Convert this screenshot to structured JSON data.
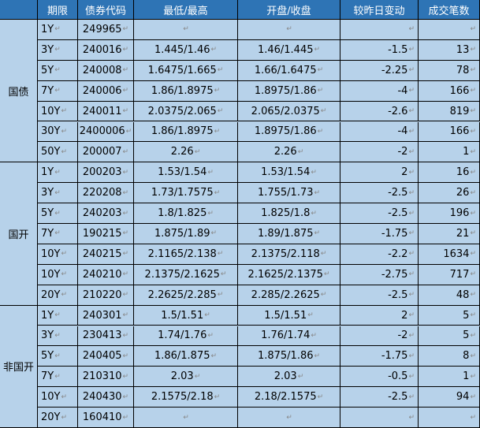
{
  "table": {
    "headers": [
      "期限",
      "债券代码",
      "最低/最高",
      "开盘/收盘",
      "较昨日变动",
      "成交笔数"
    ],
    "groups": [
      {
        "name": "国债",
        "rows": [
          {
            "term": "1Y",
            "code": "249965",
            "lowhigh": "",
            "openclose": "",
            "change": "",
            "count": ""
          },
          {
            "term": "3Y",
            "code": "240016",
            "lowhigh": "1.445/1.46",
            "openclose": "1.46/1.445",
            "change": "-1.5",
            "count": "13"
          },
          {
            "term": "5Y",
            "code": "240008",
            "lowhigh": "1.6475/1.665",
            "openclose": "1.66/1.6475",
            "change": "-2.25",
            "count": "78"
          },
          {
            "term": "7Y",
            "code": "240006",
            "lowhigh": "1.86/1.8975",
            "openclose": "1.8975/1.86",
            "change": "-4",
            "count": "166"
          },
          {
            "term": "10Y",
            "code": "240011",
            "lowhigh": "2.0375/2.065",
            "openclose": "2.065/2.0375",
            "change": "-2.6",
            "count": "819"
          },
          {
            "term": "30Y",
            "code": "2400006",
            "lowhigh": "1.86/1.8975",
            "openclose": "1.8975/1.86",
            "change": "-4",
            "count": "166"
          },
          {
            "term": "50Y",
            "code": "200007",
            "lowhigh": "2.26",
            "openclose": "2.26",
            "change": "-2",
            "count": "1"
          }
        ]
      },
      {
        "name": "国开",
        "rows": [
          {
            "term": "1Y",
            "code": "200203",
            "lowhigh": "1.53/1.54",
            "openclose": "1.53/1.54",
            "change": "2",
            "count": "16"
          },
          {
            "term": "3Y",
            "code": "220208",
            "lowhigh": "1.73/1.7575",
            "openclose": "1.755/1.73",
            "change": "-2.5",
            "count": "26"
          },
          {
            "term": "5Y",
            "code": "240203",
            "lowhigh": "1.8/1.825",
            "openclose": "1.825/1.8",
            "change": "-2.5",
            "count": "196"
          },
          {
            "term": "7Y",
            "code": "190215",
            "lowhigh": "1.875/1.89",
            "openclose": "1.89/1.875",
            "change": "-1.75",
            "count": "21"
          },
          {
            "term": "10Y",
            "code": "240215",
            "lowhigh": "2.1165/2.138",
            "openclose": "2.1375/2.118",
            "change": "-2.2",
            "count": "1634"
          },
          {
            "term": "10Y",
            "code": "240210",
            "lowhigh": "2.1375/2.1625",
            "openclose": "2.1625/2.1375",
            "change": "-2.75",
            "count": "717"
          },
          {
            "term": "20Y",
            "code": "210220",
            "lowhigh": "2.2625/2.285",
            "openclose": "2.285/2.2625",
            "change": "-2.5",
            "count": "48"
          }
        ]
      },
      {
        "name": "非国开",
        "rows": [
          {
            "term": "1Y",
            "code": "240301",
            "lowhigh": "1.5/1.51",
            "openclose": "1.5/1.51",
            "change": "2",
            "count": "5"
          },
          {
            "term": "3Y",
            "code": "230413",
            "lowhigh": "1.74/1.76",
            "openclose": "1.76/1.74",
            "change": "-2",
            "count": "5"
          },
          {
            "term": "5Y",
            "code": "240405",
            "lowhigh": "1.86/1.875",
            "openclose": "1.875/1.86",
            "change": "-1.75",
            "count": "8"
          },
          {
            "term": "7Y",
            "code": "210310",
            "lowhigh": "2.03",
            "openclose": "2.03",
            "change": "-0.5",
            "count": "1"
          },
          {
            "term": "10Y",
            "code": "240430",
            "lowhigh": "2.1575/2.18",
            "openclose": "2.18/2.1575",
            "change": "-2.5",
            "count": "94"
          },
          {
            "term": "20Y",
            "code": "160410",
            "lowhigh": "",
            "openclose": "",
            "change": "",
            "count": ""
          }
        ]
      }
    ]
  },
  "colors": {
    "header_bg": "#2e74b5",
    "header_text": "#ffffff",
    "body_bg": "#b7d2ea",
    "grid_line": "#000000"
  }
}
